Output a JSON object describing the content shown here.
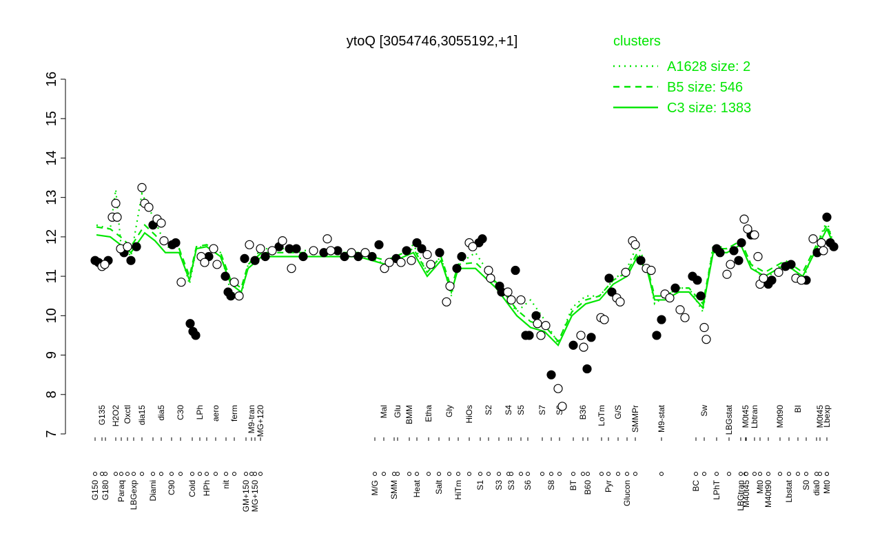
{
  "chart_data": {
    "type": "line",
    "title": "ytoQ [3054746,3055192,+1]",
    "legend_title": "clusters",
    "legend": "top-right",
    "legend_color": "#00e600",
    "xlim": [
      0,
      1120
    ],
    "ylim": [
      7,
      16
    ],
    "yticks": [
      7,
      8,
      9,
      10,
      11,
      12,
      13,
      14,
      15,
      16
    ],
    "series": [
      {
        "name": "A1628 size: 2",
        "color": "#00e600",
        "linestyle": "dotted",
        "x": [
          45,
          65,
          73,
          80,
          95,
          111,
          130,
          145,
          165,
          180,
          190,
          205,
          225,
          240,
          255,
          265,
          285,
          325,
          375,
          425,
          465,
          505,
          525,
          545,
          560,
          570,
          595,
          625,
          655,
          675,
          695,
          715,
          735,
          755,
          775,
          795,
          815,
          830,
          845,
          855,
          870,
          890,
          905,
          925,
          940,
          960,
          980,
          995,
          1015,
          1045,
          1070,
          1090,
          1105,
          1115
        ],
        "values": [
          12.3,
          12.2,
          13.2,
          11.9,
          11.5,
          13.1,
          12.4,
          11.8,
          11.7,
          10.8,
          11.7,
          11.8,
          11.6,
          10.6,
          10.5,
          11.3,
          11.7,
          11.7,
          11.6,
          11.6,
          11.3,
          11.8,
          11.1,
          11.5,
          10.5,
          11.3,
          11.6,
          10.8,
          10.1,
          10.4,
          9.9,
          9.3,
          10.2,
          10.5,
          10.5,
          10.9,
          11.2,
          11.8,
          11.2,
          10.3,
          10.5,
          10.7,
          10.7,
          10.1,
          11.8,
          11.7,
          11.9,
          11.3,
          10.9,
          11.4,
          10.9,
          11.8,
          12.4,
          11.8
        ]
      },
      {
        "name": "B5 size: 546",
        "color": "#00e600",
        "linestyle": "dashed",
        "x": [
          45,
          65,
          80,
          95,
          115,
          130,
          145,
          165,
          180,
          190,
          205,
          225,
          240,
          255,
          265,
          285,
          325,
          375,
          425,
          465,
          505,
          525,
          545,
          560,
          570,
          595,
          625,
          655,
          675,
          695,
          715,
          735,
          755,
          775,
          795,
          815,
          830,
          845,
          855,
          870,
          890,
          905,
          925,
          940,
          960,
          980,
          995,
          1015,
          1045,
          1070,
          1090,
          1105,
          1115
        ],
        "values": [
          12.25,
          12.2,
          12.0,
          11.75,
          12.3,
          12.05,
          11.75,
          11.7,
          11.0,
          11.75,
          11.8,
          11.6,
          10.9,
          10.7,
          11.3,
          11.6,
          11.6,
          11.6,
          11.6,
          11.4,
          11.7,
          11.1,
          11.5,
          10.7,
          11.3,
          11.35,
          10.85,
          10.15,
          9.85,
          9.75,
          9.35,
          10.1,
          10.4,
          10.5,
          10.9,
          11.1,
          11.6,
          11.2,
          10.5,
          10.5,
          10.7,
          10.7,
          10.3,
          11.7,
          11.7,
          11.9,
          11.3,
          11.1,
          11.4,
          11.1,
          11.8,
          12.3,
          11.85
        ]
      },
      {
        "name": "C3 size: 1383",
        "color": "#00e600",
        "linestyle": "solid",
        "x": [
          45,
          65,
          80,
          95,
          115,
          130,
          145,
          165,
          180,
          190,
          205,
          225,
          240,
          255,
          265,
          285,
          325,
          375,
          425,
          465,
          505,
          525,
          545,
          560,
          570,
          595,
          625,
          655,
          675,
          695,
          715,
          735,
          755,
          775,
          795,
          815,
          830,
          845,
          855,
          870,
          890,
          905,
          925,
          940,
          960,
          980,
          995,
          1015,
          1045,
          1070,
          1090,
          1105,
          1115
        ],
        "values": [
          12.05,
          12.0,
          11.8,
          11.6,
          12.1,
          11.9,
          11.6,
          11.6,
          10.9,
          11.7,
          11.75,
          11.5,
          10.8,
          10.6,
          11.2,
          11.5,
          11.5,
          11.5,
          11.5,
          11.3,
          11.6,
          11.0,
          11.4,
          10.6,
          11.2,
          11.2,
          10.7,
          10.0,
          9.7,
          9.6,
          9.25,
          10.0,
          10.3,
          10.4,
          10.8,
          11.0,
          11.5,
          11.1,
          10.4,
          10.4,
          10.6,
          10.6,
          10.2,
          11.6,
          11.6,
          11.8,
          11.2,
          11.0,
          11.3,
          11.0,
          11.7,
          12.2,
          11.8
        ]
      }
    ],
    "points": [
      {
        "color": "#000000",
        "x": [
          43,
          48,
          62,
          85,
          95,
          103,
          127,
          155,
          160,
          181,
          185,
          189,
          208,
          232,
          236,
          240,
          260,
          275,
          290,
          310,
          325,
          335,
          345,
          375,
          395,
          405,
          425,
          445,
          455,
          480,
          495,
          510,
          517,
          543,
          568,
          575,
          600,
          605,
          630,
          633,
          653,
          668,
          673,
          683,
          705,
          737,
          757,
          763,
          789,
          793,
          835,
          858,
          865,
          885,
          910,
          917,
          922,
          945,
          950,
          970,
          977,
          981,
          995,
          1020,
          1025,
          1045,
          1053,
          1075,
          1091,
          1105,
          1110,
          1115
        ],
        "values": [
          11.4,
          11.35,
          11.4,
          11.6,
          11.4,
          11.75,
          12.3,
          11.8,
          11.85,
          9.8,
          9.6,
          9.5,
          11.5,
          11.0,
          10.6,
          10.5,
          11.45,
          11.4,
          11.5,
          11.75,
          11.7,
          11.7,
          11.5,
          11.6,
          11.65,
          11.5,
          11.5,
          11.5,
          11.8,
          11.45,
          11.65,
          11.85,
          11.7,
          11.6,
          11.2,
          11.5,
          11.85,
          11.95,
          10.75,
          10.6,
          11.15,
          9.5,
          9.5,
          10.0,
          8.5,
          9.25,
          8.65,
          9.45,
          10.95,
          10.6,
          11.4,
          9.5,
          9.9,
          10.7,
          11.0,
          10.9,
          10.5,
          11.7,
          11.6,
          11.65,
          11.4,
          11.85,
          12.05,
          10.8,
          10.9,
          11.25,
          11.3,
          10.9,
          11.6,
          12.5,
          11.85,
          11.75
        ]
      },
      {
        "color": "#ffffff",
        "x": [
          53,
          57,
          68,
          73,
          75,
          80,
          90,
          111,
          115,
          121,
          133,
          139,
          143,
          168,
          197,
          202,
          215,
          220,
          245,
          252,
          267,
          283,
          300,
          315,
          328,
          360,
          380,
          385,
          415,
          435,
          463,
          470,
          487,
          502,
          525,
          530,
          553,
          558,
          586,
          591,
          614,
          617,
          642,
          647,
          661,
          685,
          690,
          697,
          715,
          721,
          748,
          752,
          777,
          782,
          800,
          805,
          813,
          823,
          827,
          843,
          850,
          870,
          877,
          892,
          899,
          927,
          930,
          960,
          965,
          985,
          990,
          1000,
          1005,
          1008,
          1013,
          1035,
          1060,
          1068,
          1085,
          1097,
          1100
        ],
        "values": [
          11.25,
          11.3,
          12.5,
          12.85,
          12.5,
          11.7,
          11.75,
          13.25,
          12.85,
          12.75,
          12.45,
          12.35,
          11.9,
          10.85,
          11.5,
          11.35,
          11.7,
          11.3,
          10.85,
          10.5,
          11.8,
          11.7,
          11.65,
          11.9,
          11.2,
          11.65,
          11.95,
          11.65,
          11.6,
          11.6,
          11.2,
          11.35,
          11.35,
          11.4,
          11.55,
          11.3,
          10.35,
          10.75,
          11.85,
          11.75,
          11.15,
          10.95,
          10.6,
          10.4,
          10.4,
          9.8,
          9.5,
          9.75,
          8.15,
          7.7,
          9.5,
          9.2,
          9.95,
          9.9,
          10.45,
          10.35,
          11.1,
          11.9,
          11.8,
          11.2,
          11.15,
          10.55,
          10.45,
          10.15,
          9.95,
          9.7,
          9.4,
          11.05,
          11.3,
          12.45,
          12.2,
          12.05,
          11.5,
          10.8,
          10.95,
          11.1,
          10.95,
          10.9,
          11.95,
          11.85,
          11.65
        ]
      }
    ],
    "upper_labels": [
      {
        "label": "G135",
        "x": 53
      },
      {
        "label": "H2O2",
        "x": 73
      },
      {
        "label": "Oxctl",
        "x": 90
      },
      {
        "label": "dia15",
        "x": 111
      },
      {
        "label": "dia5",
        "x": 139
      },
      {
        "label": "C30",
        "x": 167
      },
      {
        "label": "LPh",
        "x": 195
      },
      {
        "label": "aero",
        "x": 218
      },
      {
        "label": "ferm",
        "x": 245
      },
      {
        "label": "M9-tran",
        "x": 270
      },
      {
        "label": "MG+120",
        "x": 283
      },
      {
        "label": "Mal",
        "x": 462
      },
      {
        "label": "Glu",
        "x": 482
      },
      {
        "label": "BMM",
        "x": 499
      },
      {
        "label": "Etha",
        "x": 527
      },
      {
        "label": "Gly",
        "x": 557
      },
      {
        "label": "HiOs",
        "x": 586
      },
      {
        "label": "S2",
        "x": 614
      },
      {
        "label": "S4",
        "x": 643
      },
      {
        "label": "S5",
        "x": 661
      },
      {
        "label": "S7",
        "x": 692
      },
      {
        "label": "S6",
        "x": 717
      },
      {
        "label": "B36",
        "x": 751
      },
      {
        "label": "LoTm",
        "x": 778
      },
      {
        "label": "G/S",
        "x": 802
      },
      {
        "label": "SMMPr",
        "x": 827
      },
      {
        "label": "M9-stat",
        "x": 865
      },
      {
        "label": "Sw",
        "x": 927
      },
      {
        "label": "LBGstat",
        "x": 963
      },
      {
        "label": "M0t45",
        "x": 987
      },
      {
        "label": "Lbtran",
        "x": 1000
      },
      {
        "label": "M0t90",
        "x": 1037
      },
      {
        "label": "BI",
        "x": 1063
      },
      {
        "label": "M0t45",
        "x": 1095
      },
      {
        "label": "Lbexp",
        "x": 1105
      }
    ],
    "lower_labels": [
      {
        "label": "G150",
        "x": 43
      },
      {
        "label": "G180",
        "x": 58
      },
      {
        "label": "Paraq",
        "x": 81
      },
      {
        "label": "LBGexp",
        "x": 99
      },
      {
        "label": "Diami",
        "x": 127
      },
      {
        "label": "C90",
        "x": 154
      },
      {
        "label": "Cold",
        "x": 184
      },
      {
        "label": "HPh",
        "x": 205
      },
      {
        "label": "nit",
        "x": 233
      },
      {
        "label": "GM+150",
        "x": 262
      },
      {
        "label": "MG+150",
        "x": 275
      },
      {
        "label": "M/G",
        "x": 449
      },
      {
        "label": "SMM",
        "x": 477
      },
      {
        "label": "Heat",
        "x": 510
      },
      {
        "label": "Salt",
        "x": 542
      },
      {
        "label": "HiTm",
        "x": 570
      },
      {
        "label": "S1",
        "x": 602
      },
      {
        "label": "S3",
        "x": 629
      },
      {
        "label": "S3",
        "x": 647
      },
      {
        "label": "S6",
        "x": 671
      },
      {
        "label": "S8",
        "x": 705
      },
      {
        "label": "BT",
        "x": 737
      },
      {
        "label": "B60",
        "x": 758
      },
      {
        "label": "Pyr",
        "x": 788
      },
      {
        "label": "Glucon",
        "x": 815
      },
      {
        "label": "BC",
        "x": 915
      },
      {
        "label": "LPhT",
        "x": 945
      },
      {
        "label": "LBGtran",
        "x": 980
      },
      {
        "label": "M40t45",
        "x": 988
      },
      {
        "label": "Mt0",
        "x": 1008
      },
      {
        "label": "M40t90",
        "x": 1020
      },
      {
        "label": "Lbstat",
        "x": 1050
      },
      {
        "label": "S0",
        "x": 1075
      },
      {
        "label": "dia0",
        "x": 1090
      },
      {
        "label": "Mt0",
        "x": 1105
      }
    ]
  }
}
